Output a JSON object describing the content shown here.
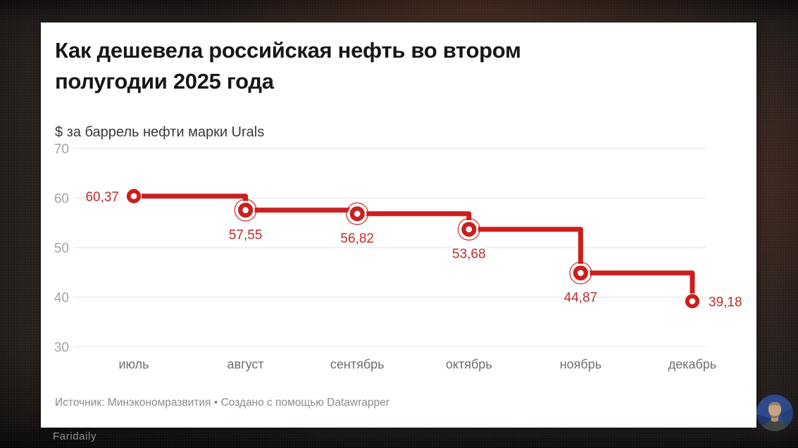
{
  "page": {
    "watermark": "Faridaily",
    "background_color": "#2b2522",
    "card_color": "#ffffff"
  },
  "chart": {
    "title": "Как дешевела российская нефть во втором полугодии 2025 года",
    "title_lines": [
      "Как дешевела российская нефть во втором",
      "полугодии 2025 года"
    ],
    "subtitle": "$ за баррель нефти марки Urals",
    "source": "Источник: Минэкономразвития • Создано с помощью Datawrapper"
  },
  "chart_data": {
    "type": "line",
    "line_shape": "step-after",
    "title": "Как дешевела российская нефть во втором полугодии 2025 года",
    "subtitle": "$ за баррель нефти марки Urals",
    "source": "Источник: Минэкономразвития • Создано с помощью Datawrapper",
    "categories": [
      "июль",
      "август",
      "сентябрь",
      "октябрь",
      "ноябрь",
      "декабрь"
    ],
    "values": [
      60.37,
      57.55,
      56.82,
      53.68,
      44.87,
      39.18
    ],
    "value_labels": [
      "60,37",
      "57,55",
      "56,82",
      "53,68",
      "44,87",
      "39,18"
    ],
    "unit": "$ за баррель нефти марки Urals",
    "ylim": [
      30,
      70
    ],
    "yticks": [
      70,
      60,
      50,
      40,
      30
    ],
    "grid": "horizontal",
    "legend": "none",
    "line_color": "#c9201f",
    "value_label_color": "#bf2b2d",
    "grid_color": "#e3e3e3",
    "ytick_color": "#a3a3a3",
    "xtick_color": "#6e6e6e",
    "marker_style": "ring"
  }
}
